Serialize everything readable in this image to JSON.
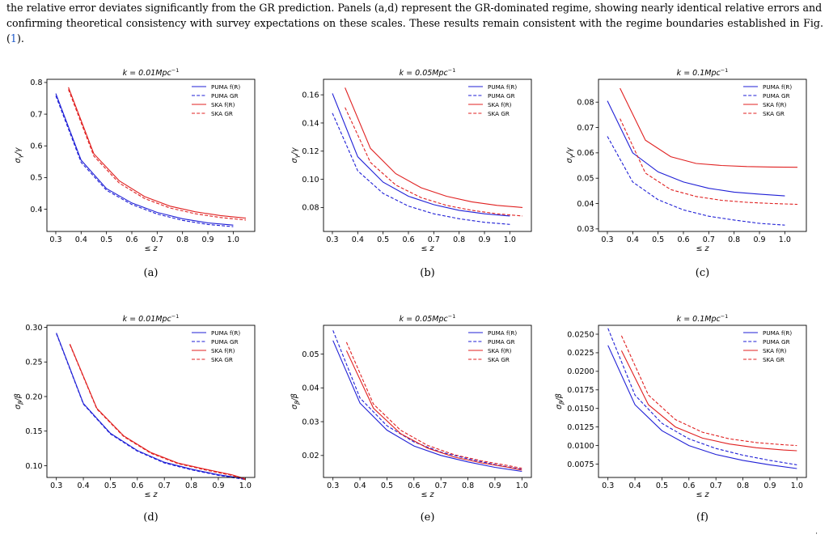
{
  "caption": {
    "line1": "the relative error deviates significantly from the GR prediction. Panels (a,d) represent the GR-dominated regime, showing nearly identical relative errors and",
    "line2a": "confirming theoretical consistency with survey expectations on these scales. These results remain consistent with the regime boundaries established in Fig. (",
    "ref": "1",
    "line2b": ")."
  },
  "colors": {
    "puma": "#1f1fd6",
    "ska": "#e02020"
  },
  "legend": [
    "PUMA f(R)",
    "PUMA GR",
    "SKA f(R)",
    "SKA GR"
  ],
  "chart_data": [
    {
      "id": "a",
      "label": "(a)",
      "type": "line",
      "title": "k = 0.01Mpc",
      "title_sup": "−1",
      "xlabel": "≤ z",
      "ylabel_main": "σ",
      "ylabel_sub": "γ",
      "ylabel_tail": "/γ",
      "xlim": [
        0.265,
        1.085
      ],
      "ylim": [
        0.33,
        0.81
      ],
      "xticks": [
        0.3,
        0.4,
        0.5,
        0.6,
        0.7,
        0.8,
        0.9,
        1.0
      ],
      "yticks": [
        0.4,
        0.5,
        0.6,
        0.7,
        0.8
      ],
      "yticklabels": [
        "0.4",
        "0.5",
        "0.6",
        "0.7",
        "0.8"
      ],
      "legend_position": "top-right",
      "series": [
        {
          "name": "PUMA f(R)",
          "color": "puma",
          "dash": false,
          "x": [
            0.3,
            0.4,
            0.5,
            0.6,
            0.7,
            0.8,
            0.9,
            1.0
          ],
          "y": [
            0.765,
            0.555,
            0.465,
            0.42,
            0.39,
            0.37,
            0.357,
            0.35
          ]
        },
        {
          "name": "PUMA GR",
          "color": "puma",
          "dash": true,
          "x": [
            0.3,
            0.4,
            0.5,
            0.6,
            0.7,
            0.8,
            0.9,
            1.0
          ],
          "y": [
            0.758,
            0.548,
            0.46,
            0.415,
            0.385,
            0.365,
            0.352,
            0.345
          ]
        },
        {
          "name": "SKA f(R)",
          "color": "ska",
          "dash": false,
          "x": [
            0.35,
            0.45,
            0.55,
            0.65,
            0.75,
            0.85,
            0.95,
            1.05
          ],
          "y": [
            0.785,
            0.575,
            0.49,
            0.44,
            0.41,
            0.392,
            0.38,
            0.372
          ]
        },
        {
          "name": "SKA GR",
          "color": "ska",
          "dash": true,
          "x": [
            0.35,
            0.45,
            0.55,
            0.65,
            0.75,
            0.85,
            0.95,
            1.05
          ],
          "y": [
            0.778,
            0.568,
            0.483,
            0.434,
            0.404,
            0.386,
            0.374,
            0.366
          ]
        }
      ]
    },
    {
      "id": "b",
      "label": "(b)",
      "type": "line",
      "title": "k = 0.05Mpc",
      "title_sup": "−1",
      "xlabel": "≤ z",
      "ylabel_main": "σ",
      "ylabel_sub": "γ",
      "ylabel_tail": "/γ",
      "xlim": [
        0.265,
        1.085
      ],
      "ylim": [
        0.063,
        0.171
      ],
      "xticks": [
        0.3,
        0.4,
        0.5,
        0.6,
        0.7,
        0.8,
        0.9,
        1.0
      ],
      "yticks": [
        0.08,
        0.1,
        0.12,
        0.14,
        0.16
      ],
      "yticklabels": [
        "0.08",
        "0.10",
        "0.12",
        "0.14",
        "0.16"
      ],
      "legend_position": "top-right",
      "series": [
        {
          "name": "PUMA f(R)",
          "color": "puma",
          "dash": false,
          "x": [
            0.3,
            0.4,
            0.5,
            0.6,
            0.7,
            0.8,
            0.9,
            1.0
          ],
          "y": [
            0.161,
            0.116,
            0.098,
            0.088,
            0.082,
            0.078,
            0.0755,
            0.074
          ]
        },
        {
          "name": "PUMA GR",
          "color": "puma",
          "dash": true,
          "x": [
            0.3,
            0.4,
            0.5,
            0.6,
            0.7,
            0.8,
            0.9,
            1.0
          ],
          "y": [
            0.147,
            0.106,
            0.09,
            0.081,
            0.0755,
            0.072,
            0.0695,
            0.068
          ]
        },
        {
          "name": "SKA f(R)",
          "color": "ska",
          "dash": false,
          "x": [
            0.35,
            0.45,
            0.55,
            0.65,
            0.75,
            0.85,
            0.95,
            1.05
          ],
          "y": [
            0.165,
            0.122,
            0.104,
            0.094,
            0.088,
            0.084,
            0.0815,
            0.08
          ]
        },
        {
          "name": "SKA GR",
          "color": "ska",
          "dash": true,
          "x": [
            0.35,
            0.45,
            0.55,
            0.65,
            0.75,
            0.85,
            0.95,
            1.05
          ],
          "y": [
            0.151,
            0.112,
            0.096,
            0.087,
            0.0815,
            0.078,
            0.0755,
            0.074
          ]
        }
      ]
    },
    {
      "id": "c",
      "label": "(c)",
      "type": "line",
      "title": "k = 0.1Mpc",
      "title_sup": "−1",
      "xlabel": "≤ z",
      "ylabel_main": "σ",
      "ylabel_sub": "γ",
      "ylabel_tail": "/γ",
      "xlim": [
        0.265,
        1.085
      ],
      "ylim": [
        0.029,
        0.089
      ],
      "xticks": [
        0.3,
        0.4,
        0.5,
        0.6,
        0.7,
        0.8,
        0.9,
        1.0
      ],
      "yticks": [
        0.03,
        0.04,
        0.05,
        0.06,
        0.07,
        0.08
      ],
      "yticklabels": [
        "0.03",
        "0.04",
        "0.05",
        "0.06",
        "0.07",
        "0.08"
      ],
      "legend_position": "top-right",
      "series": [
        {
          "name": "PUMA f(R)",
          "color": "puma",
          "dash": false,
          "x": [
            0.3,
            0.4,
            0.5,
            0.6,
            0.7,
            0.8,
            0.9,
            1.0
          ],
          "y": [
            0.0805,
            0.06,
            0.0525,
            0.0485,
            0.046,
            0.0445,
            0.0437,
            0.043
          ]
        },
        {
          "name": "PUMA GR",
          "color": "puma",
          "dash": true,
          "x": [
            0.3,
            0.4,
            0.5,
            0.6,
            0.7,
            0.8,
            0.9,
            1.0
          ],
          "y": [
            0.0665,
            0.0485,
            0.0415,
            0.0375,
            0.035,
            0.0335,
            0.0322,
            0.0315
          ]
        },
        {
          "name": "SKA f(R)",
          "color": "ska",
          "dash": false,
          "x": [
            0.35,
            0.45,
            0.55,
            0.65,
            0.75,
            0.85,
            0.95,
            1.05
          ],
          "y": [
            0.0855,
            0.065,
            0.0585,
            0.0558,
            0.055,
            0.0546,
            0.0544,
            0.0543
          ]
        },
        {
          "name": "SKA GR",
          "color": "ska",
          "dash": true,
          "x": [
            0.35,
            0.45,
            0.55,
            0.65,
            0.75,
            0.85,
            0.95,
            1.05
          ],
          "y": [
            0.0735,
            0.052,
            0.0455,
            0.0428,
            0.0413,
            0.0405,
            0.04,
            0.0397
          ]
        }
      ]
    },
    {
      "id": "d",
      "label": "(d)",
      "type": "line",
      "title": "k = 0.01Mpc",
      "title_sup": "−1",
      "xlabel": "≤ z",
      "ylabel_main": "σ",
      "ylabel_sub": "β",
      "ylabel_tail": "/β",
      "xlim": [
        0.265,
        1.035
      ],
      "ylim": [
        0.083,
        0.303
      ],
      "xticks": [
        0.3,
        0.4,
        0.5,
        0.6,
        0.7,
        0.8,
        0.9,
        1.0
      ],
      "yticks": [
        0.1,
        0.15,
        0.2,
        0.25,
        0.3
      ],
      "yticklabels": [
        "0.10",
        "0.15",
        "0.20",
        "0.25",
        "0.30"
      ],
      "legend_position": "top-right",
      "series": [
        {
          "name": "PUMA f(R)",
          "color": "puma",
          "dash": false,
          "x": [
            0.3,
            0.4,
            0.5,
            0.6,
            0.7,
            0.8,
            0.9,
            1.0
          ],
          "y": [
            0.292,
            0.19,
            0.147,
            0.122,
            0.105,
            0.095,
            0.087,
            0.081
          ]
        },
        {
          "name": "PUMA GR",
          "color": "puma",
          "dash": true,
          "x": [
            0.3,
            0.4,
            0.5,
            0.6,
            0.7,
            0.8,
            0.9,
            1.0
          ],
          "y": [
            0.291,
            0.189,
            0.146,
            0.121,
            0.104,
            0.094,
            0.086,
            0.08
          ]
        },
        {
          "name": "SKA f(R)",
          "color": "ska",
          "dash": false,
          "x": [
            0.35,
            0.45,
            0.55,
            0.65,
            0.75,
            0.85,
            0.95,
            1.0
          ],
          "y": [
            0.276,
            0.183,
            0.143,
            0.119,
            0.104,
            0.095,
            0.087,
            0.081
          ]
        },
        {
          "name": "SKA GR",
          "color": "ska",
          "dash": true,
          "x": [
            0.35,
            0.45,
            0.55,
            0.65,
            0.75,
            0.85,
            0.95,
            1.0
          ],
          "y": [
            0.275,
            0.182,
            0.142,
            0.118,
            0.103,
            0.094,
            0.086,
            0.08
          ]
        }
      ]
    },
    {
      "id": "e",
      "label": "(e)",
      "type": "line",
      "title": "k = 0.05Mpc",
      "title_sup": "−1",
      "xlabel": "≤ z",
      "ylabel_main": "σ",
      "ylabel_sub": "β",
      "ylabel_tail": "/β",
      "xlim": [
        0.265,
        1.035
      ],
      "ylim": [
        0.0135,
        0.0585
      ],
      "xticks": [
        0.3,
        0.4,
        0.5,
        0.6,
        0.7,
        0.8,
        0.9,
        1.0
      ],
      "yticks": [
        0.02,
        0.03,
        0.04,
        0.05
      ],
      "yticklabels": [
        "0.02",
        "0.03",
        "0.04",
        "0.05"
      ],
      "legend_position": "top-right",
      "series": [
        {
          "name": "PUMA f(R)",
          "color": "puma",
          "dash": false,
          "x": [
            0.3,
            0.4,
            0.5,
            0.6,
            0.7,
            0.8,
            0.9,
            1.0
          ],
          "y": [
            0.054,
            0.0355,
            0.0275,
            0.0228,
            0.02,
            0.0181,
            0.0165,
            0.0153
          ]
        },
        {
          "name": "PUMA GR",
          "color": "puma",
          "dash": true,
          "x": [
            0.3,
            0.4,
            0.5,
            0.6,
            0.7,
            0.8,
            0.9,
            1.0
          ],
          "y": [
            0.057,
            0.037,
            0.0288,
            0.024,
            0.021,
            0.019,
            0.0173,
            0.0159
          ]
        },
        {
          "name": "SKA f(R)",
          "color": "ska",
          "dash": false,
          "x": [
            0.35,
            0.45,
            0.55,
            0.65,
            0.75,
            0.85,
            0.95,
            1.0
          ],
          "y": [
            0.051,
            0.034,
            0.0265,
            0.0222,
            0.0195,
            0.0178,
            0.0165,
            0.0157
          ]
        },
        {
          "name": "SKA GR",
          "color": "ska",
          "dash": true,
          "x": [
            0.35,
            0.45,
            0.55,
            0.65,
            0.75,
            0.85,
            0.95,
            1.0
          ],
          "y": [
            0.0535,
            0.0352,
            0.0275,
            0.023,
            0.0202,
            0.0184,
            0.017,
            0.0162
          ]
        }
      ]
    },
    {
      "id": "f",
      "label": "(f)",
      "type": "line",
      "title": "k = 0.1Mpc",
      "title_sup": "−1",
      "xlabel": "≤ z",
      "ylabel_main": "σ",
      "ylabel_sub": "β",
      "ylabel_tail": "/β",
      "xlim": [
        0.265,
        1.035
      ],
      "ylim": [
        0.0057,
        0.0262
      ],
      "xticks": [
        0.3,
        0.4,
        0.5,
        0.6,
        0.7,
        0.8,
        0.9,
        1.0
      ],
      "yticks": [
        0.0075,
        0.01,
        0.0125,
        0.015,
        0.0175,
        0.02,
        0.0225,
        0.025
      ],
      "yticklabels": [
        "0.0075",
        "0.0100",
        "0.0125",
        "0.0150",
        "0.0175",
        "0.0200",
        "0.0225",
        "0.0250"
      ],
      "legend_position": "top-right",
      "series": [
        {
          "name": "PUMA f(R)",
          "color": "puma",
          "dash": false,
          "x": [
            0.3,
            0.4,
            0.5,
            0.6,
            0.7,
            0.8,
            0.9,
            1.0
          ],
          "y": [
            0.0235,
            0.0155,
            0.012,
            0.01,
            0.0088,
            0.008,
            0.0074,
            0.0069
          ]
        },
        {
          "name": "PUMA GR",
          "color": "puma",
          "dash": true,
          "x": [
            0.3,
            0.4,
            0.5,
            0.6,
            0.7,
            0.8,
            0.9,
            1.0
          ],
          "y": [
            0.0258,
            0.0168,
            0.013,
            0.0109,
            0.0096,
            0.0087,
            0.008,
            0.0074
          ]
        },
        {
          "name": "SKA f(R)",
          "color": "ska",
          "dash": false,
          "x": [
            0.35,
            0.45,
            0.55,
            0.65,
            0.75,
            0.85,
            0.95,
            1.0
          ],
          "y": [
            0.0228,
            0.0155,
            0.0125,
            0.011,
            0.0102,
            0.0097,
            0.0094,
            0.0093
          ]
        },
        {
          "name": "SKA GR",
          "color": "ska",
          "dash": true,
          "x": [
            0.35,
            0.45,
            0.55,
            0.65,
            0.75,
            0.85,
            0.95,
            1.0
          ],
          "y": [
            0.0248,
            0.0168,
            0.0135,
            0.0118,
            0.0109,
            0.0104,
            0.0101,
            0.01
          ]
        }
      ]
    }
  ]
}
